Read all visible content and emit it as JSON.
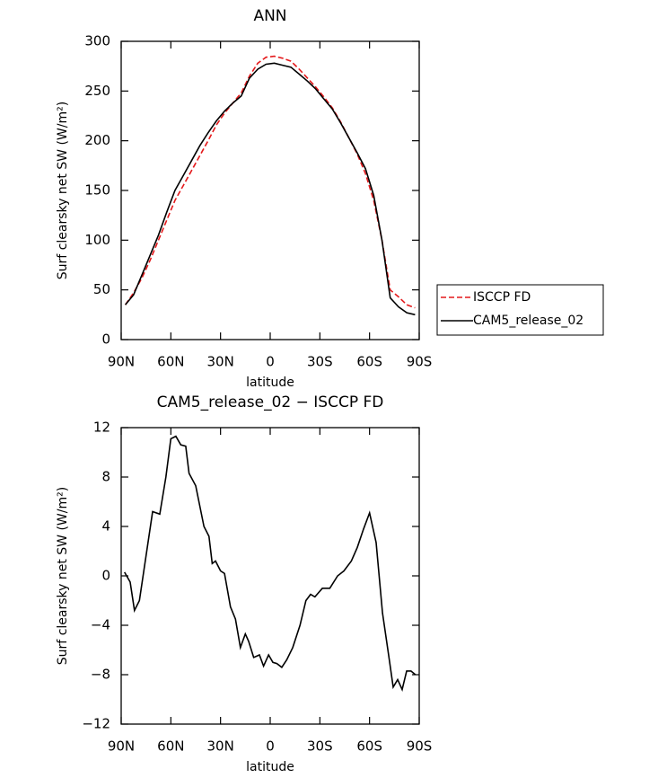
{
  "chart_data": [
    {
      "type": "line",
      "title": "ANN",
      "xlabel": "latitude",
      "ylabel": "Surf clearsky net SW (W/m²)",
      "x": [
        87.5,
        82.5,
        77.5,
        72.5,
        67.5,
        62.5,
        57.5,
        52.5,
        47.5,
        42.5,
        37.5,
        32.5,
        27.5,
        22.5,
        17.5,
        12.5,
        7.5,
        2.5,
        -2.5,
        -7.5,
        -12.5,
        -17.5,
        -22.5,
        -27.5,
        -32.5,
        -37.5,
        -42.5,
        -47.5,
        -52.5,
        -57.5,
        -62.5,
        -67.5,
        -72.5,
        -77.5,
        -82.5,
        -87.5
      ],
      "series": [
        {
          "name": "ISCCP FD",
          "color": "#e41a1c",
          "line_style": "dashed",
          "values": [
            35,
            47,
            62,
            80,
            100,
            120,
            140,
            155,
            170,
            185,
            200,
            216,
            228,
            238,
            248,
            265,
            278,
            284,
            285,
            283,
            280,
            272,
            263,
            254,
            244,
            233,
            219,
            203,
            187,
            167,
            140,
            100,
            50,
            43,
            35,
            32
          ]
        },
        {
          "name": "CAM5_release_02",
          "color": "#000000",
          "line_style": "solid",
          "values": [
            35,
            45,
            65,
            85,
            105,
            128,
            150,
            165,
            180,
            195,
            208,
            220,
            230,
            238,
            245,
            263,
            272,
            277,
            278,
            276,
            274,
            267,
            260,
            252,
            242,
            232,
            218,
            203,
            188,
            172,
            145,
            100,
            42,
            33,
            27,
            25
          ]
        }
      ],
      "xlim": [
        90,
        -90
      ],
      "xticks": [
        {
          "value": 90,
          "label": "90N"
        },
        {
          "value": 60,
          "label": "60N"
        },
        {
          "value": 30,
          "label": "30N"
        },
        0,
        {
          "value": -30,
          "label": "30S"
        },
        {
          "value": -60,
          "label": "60S"
        },
        {
          "value": -90,
          "label": "90S"
        }
      ],
      "ylim": [
        0,
        300
      ],
      "yticks": [
        0,
        50,
        100,
        150,
        200,
        250,
        300
      ],
      "legend": "right-outside"
    },
    {
      "type": "line",
      "title": "CAM5_release_02 − ISCCP FD",
      "xlabel": "latitude",
      "ylabel": "Surf clearsky net SW (W/m²)",
      "x": [
        88,
        84.6,
        82,
        79,
        71,
        66.7,
        63,
        60,
        57,
        54,
        51,
        49,
        45,
        40,
        37,
        35,
        33,
        30,
        27.6,
        24,
        21,
        18,
        15,
        13,
        10,
        6.5,
        4,
        1,
        -1.6,
        -4,
        -7,
        -10,
        -13.6,
        -18,
        -21.6,
        -24.4,
        -27,
        -31.5,
        -36,
        -40.7,
        -44.5,
        -49,
        -52.6,
        -56.4,
        -60,
        -64,
        -67.8,
        -71.6,
        -74.3,
        -77,
        -79.7,
        -82.4,
        -85,
        -87.7
      ],
      "values": [
        0.3,
        -0.5,
        -2.8,
        -2,
        5.2,
        5,
        8,
        11.1,
        11.3,
        10.6,
        10.5,
        8.3,
        7.3,
        4,
        3.2,
        1,
        1.2,
        0.4,
        0.2,
        -2.5,
        -3.5,
        -5.8,
        -4.7,
        -5.3,
        -6.6,
        -6.4,
        -7.3,
        -6.4,
        -7,
        -7.1,
        -7.4,
        -6.8,
        -5.8,
        -4,
        -2,
        -1.5,
        -1.7,
        -1,
        -1,
        0,
        0.4,
        1.2,
        2.3,
        3.8,
        5.1,
        2.7,
        -3,
        -6.5,
        -9,
        -8.4,
        -9.2,
        -7.7,
        -7.7,
        -8
      ],
      "color": "#000000",
      "xlim": [
        90,
        -90
      ],
      "xticks": [
        {
          "value": 90,
          "label": "90N"
        },
        {
          "value": 60,
          "label": "60N"
        },
        {
          "value": 30,
          "label": "30N"
        },
        0,
        {
          "value": -30,
          "label": "30S"
        },
        {
          "value": -60,
          "label": "60S"
        },
        {
          "value": -90,
          "label": "90S"
        }
      ],
      "ylim": [
        -12,
        12
      ],
      "yticks": [
        {
          "value": -12,
          "label": "−12"
        },
        {
          "value": -8,
          "label": "−8"
        },
        {
          "value": -4,
          "label": "−4"
        },
        0,
        4,
        8,
        12
      ]
    }
  ]
}
